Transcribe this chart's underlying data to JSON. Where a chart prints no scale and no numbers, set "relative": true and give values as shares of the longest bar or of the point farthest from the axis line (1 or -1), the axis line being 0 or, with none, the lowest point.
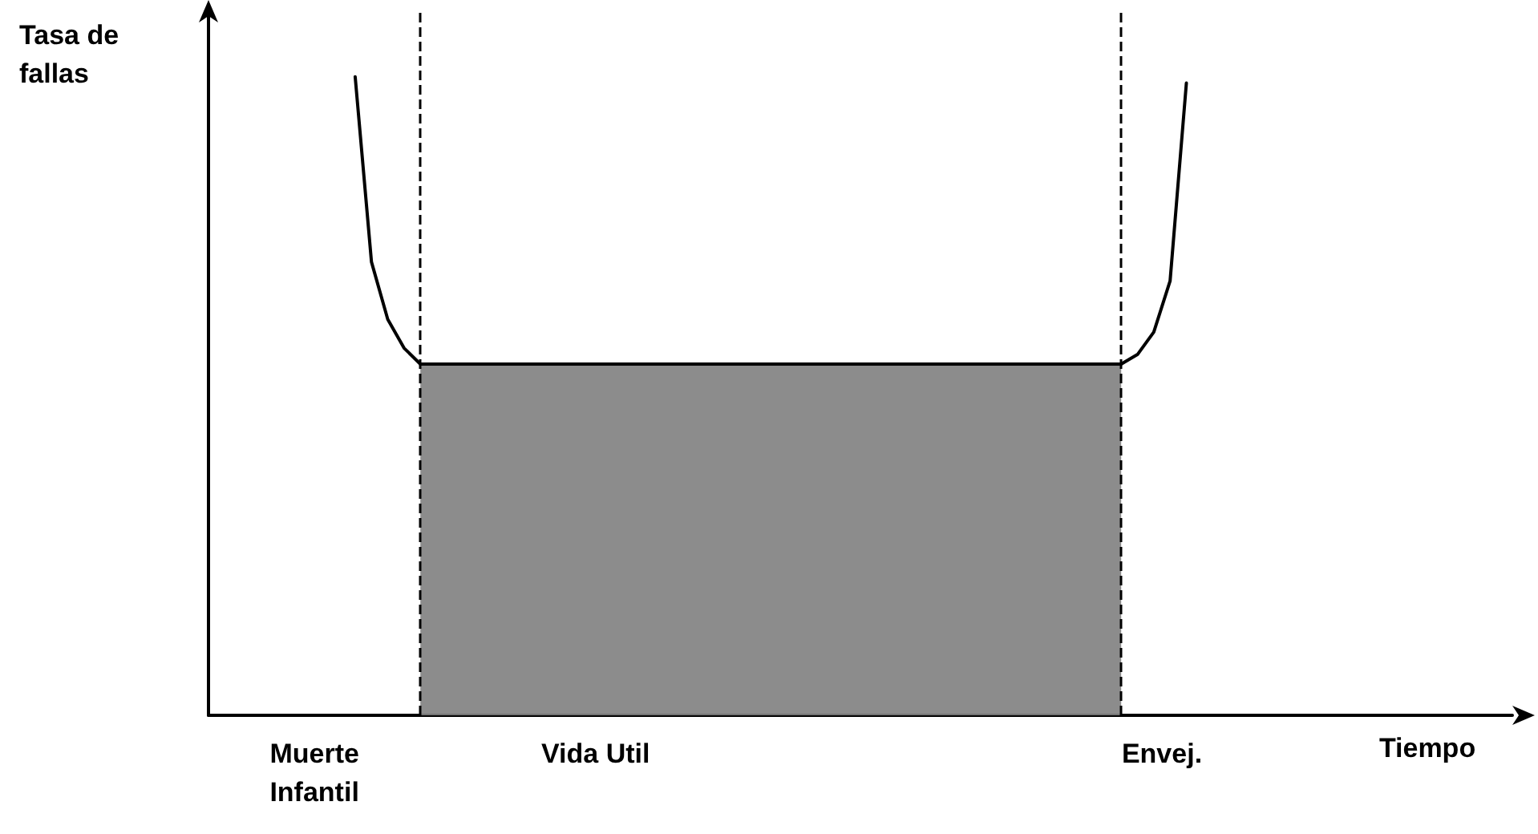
{
  "chart_data": {
    "type": "line",
    "relative": true,
    "xlabel": "Tiempo",
    "ylabel": "Tasa de fallas",
    "marker": "none",
    "line_style": "solid",
    "categories": [
      null,
      null,
      null,
      null,
      null,
      null,
      null,
      null,
      null,
      null,
      null,
      null,
      null,
      null,
      null,
      null,
      null,
      null,
      null,
      null,
      null,
      null,
      null,
      null,
      null,
      null,
      null,
      null,
      null,
      null,
      null,
      null,
      null,
      null,
      null,
      null,
      null,
      null,
      null,
      null,
      null,
      null,
      null,
      null,
      null,
      null,
      null,
      null,
      null,
      null,
      null,
      null,
      null,
      null,
      null,
      null,
      null,
      null,
      null,
      null,
      null,
      null,
      null,
      null,
      null,
      null,
      null,
      null,
      null,
      null,
      null,
      null,
      null,
      null,
      null,
      null,
      null,
      null,
      null,
      null,
      null
    ],
    "series": [
      {
        "color": "#000000",
        "values": [
          null,
          null,
          null,
          null,
          null,
          null,
          null,
          null,
          null,
          1,
          0.71,
          0.62,
          0.575,
          0.55,
          0.55,
          0.55,
          0.55,
          0.55,
          0.55,
          0.55,
          0.55,
          0.55,
          0.55,
          0.55,
          0.55,
          0.55,
          0.55,
          0.55,
          0.55,
          0.55,
          0.55,
          0.55,
          0.55,
          0.55,
          0.55,
          0.55,
          0.55,
          0.55,
          0.55,
          0.55,
          0.55,
          0.55,
          0.55,
          0.55,
          0.55,
          0.55,
          0.55,
          0.55,
          0.55,
          0.55,
          0.55,
          0.55,
          0.55,
          0.55,
          0.55,
          0.55,
          0.55,
          0.565,
          0.6,
          0.68,
          0.99,
          null,
          null,
          null,
          null,
          null,
          null,
          null,
          null,
          null,
          null,
          null,
          null,
          null,
          null,
          null,
          null,
          null,
          null,
          null,
          null
        ]
      },
      {
        "type": "area",
        "color": "#808080",
        "values": [
          null,
          null,
          null,
          null,
          null,
          null,
          null,
          null,
          null,
          null,
          null,
          null,
          null,
          0.55,
          0.55,
          0.55,
          0.55,
          0.55,
          0.55,
          0.55,
          0.55,
          0.55,
          0.55,
          0.55,
          0.55,
          0.55,
          0.55,
          0.55,
          0.55,
          0.55,
          0.55,
          0.55,
          0.55,
          0.55,
          0.55,
          0.55,
          0.55,
          0.55,
          0.55,
          0.55,
          0.55,
          0.55,
          0.55,
          0.55,
          0.55,
          0.55,
          0.55,
          0.55,
          0.55,
          0.55,
          0.55,
          0.55,
          0.55,
          0.55,
          0.55,
          0.55,
          0.55,
          null,
          null,
          null,
          null,
          null,
          null,
          null,
          null,
          null,
          null,
          null,
          null,
          null,
          null,
          null,
          null,
          null,
          null,
          null,
          null,
          null,
          null,
          null,
          null
        ]
      }
    ],
    "ref_lines": [
      {
        "axis": "x",
        "line_style": "dashed",
        "color": "#000000"
      },
      {
        "axis": "x",
        "line_style": "dashed",
        "color": "#000000"
      }
    ],
    "annotations": [
      "Muerte\nInfantil",
      "Vida Util",
      "Envej."
    ]
  }
}
